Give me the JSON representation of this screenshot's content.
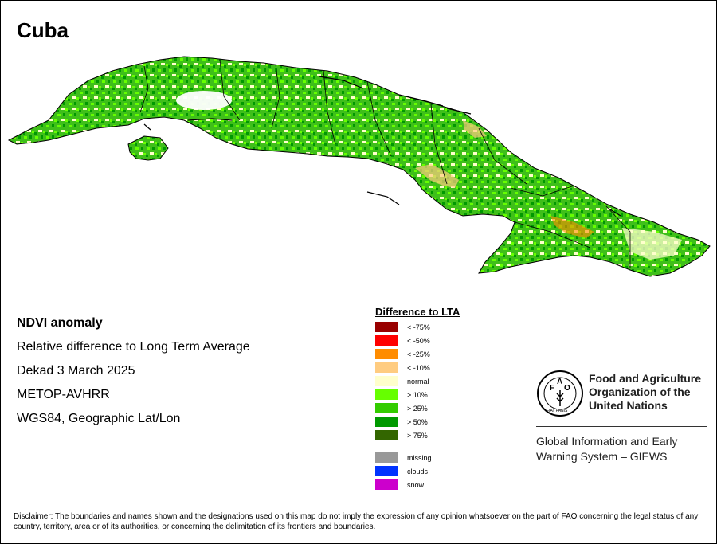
{
  "map_title": "Cuba",
  "product": {
    "heading": "NDVI anomaly",
    "description": "Relative difference to Long Term Average",
    "period": "Dekad 3 March 2025",
    "sensor": "METOP-AVHRR",
    "projection": "WGS84, Geographic Lat/Lon"
  },
  "legend": {
    "title": "Difference to LTA",
    "classes": [
      {
        "label": "< -75%",
        "color": "#990000"
      },
      {
        "label": "< -50%",
        "color": "#ff0000"
      },
      {
        "label": "< -25%",
        "color": "#ff8c00"
      },
      {
        "label": "< -10%",
        "color": "#ffcc80"
      },
      {
        "label": "normal",
        "color": "#ffffcc"
      },
      {
        "label": "> 10%",
        "color": "#66ff00"
      },
      {
        "label": "> 25%",
        "color": "#33cc00"
      },
      {
        "label": "> 50%",
        "color": "#009900"
      },
      {
        "label": "> 75%",
        "color": "#336600"
      }
    ],
    "extra": [
      {
        "label": "missing",
        "color": "#999999"
      },
      {
        "label": "clouds",
        "color": "#0033ff"
      },
      {
        "label": "snow",
        "color": "#cc00cc"
      }
    ]
  },
  "organization": {
    "name": "Food and Agriculture Organization of the United Nations",
    "logo_text": "FIAT PANIS",
    "system": "Global Information and Early Warning System – GIEWS"
  },
  "disclaimer": "Disclaimer: The boundaries and names shown and the designations used on this map do not imply the expression of any opinion whatsoever on the part of FAO concerning the legal status of any country, territory, area or of its authorities, or concerning the delimitation of its frontiers and boundaries."
}
